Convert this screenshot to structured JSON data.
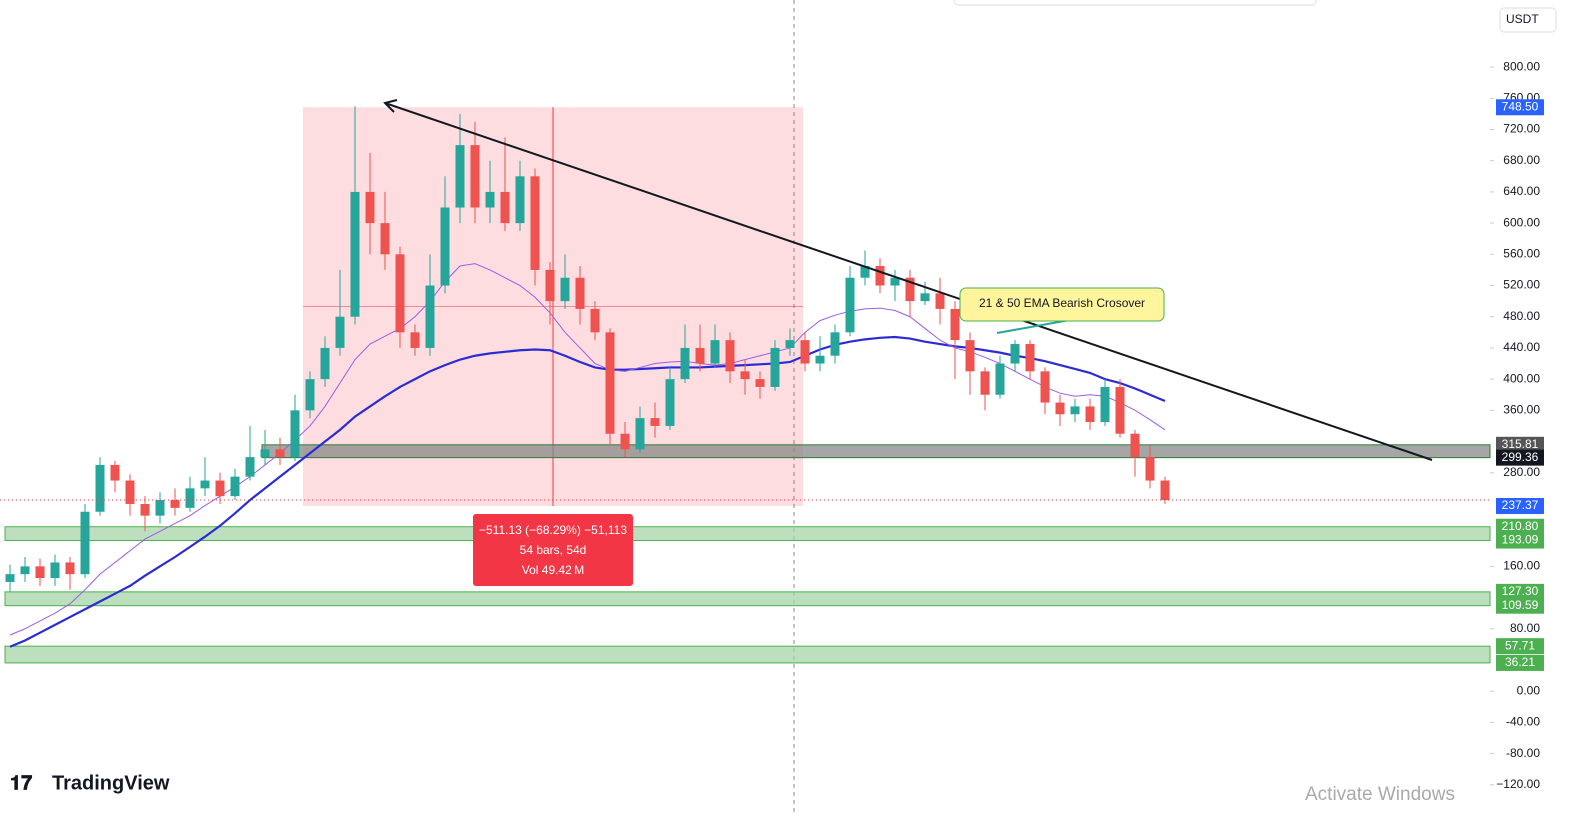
{
  "toolbar": {
    "currency": "USDT"
  },
  "chart_data": {
    "type": "candlestick",
    "ylim": [
      -160,
      886
    ],
    "yticks": [
      {
        "value": 800,
        "label": "800.00"
      },
      {
        "value": 760,
        "label": "760.00"
      },
      {
        "value": 720,
        "label": "720.00"
      },
      {
        "value": 680,
        "label": "680.00"
      },
      {
        "value": 640,
        "label": "640.00"
      },
      {
        "value": 600,
        "label": "600.00"
      },
      {
        "value": 560,
        "label": "560.00"
      },
      {
        "value": 520,
        "label": "520.00"
      },
      {
        "value": 480,
        "label": "480.00"
      },
      {
        "value": 440,
        "label": "440.00"
      },
      {
        "value": 400,
        "label": "400.00"
      },
      {
        "value": 360,
        "label": "360.00"
      },
      {
        "value": 280,
        "label": "280.00"
      },
      {
        "value": 160,
        "label": "160.00"
      },
      {
        "value": 80,
        "label": "80.00"
      },
      {
        "value": 0,
        "label": "0.00"
      },
      {
        "value": -40,
        "label": "-40.00"
      },
      {
        "value": -80,
        "label": "-80.00"
      },
      {
        "value": -120,
        "label": "−120.00"
      }
    ],
    "up_color": "#26a69a",
    "down_color": "#ef5350",
    "candles": [
      [
        140,
        162,
        128,
        150
      ],
      [
        150,
        172,
        140,
        160
      ],
      [
        160,
        170,
        135,
        145
      ],
      [
        145,
        175,
        135,
        165
      ],
      [
        165,
        172,
        130,
        150
      ],
      [
        150,
        240,
        145,
        230
      ],
      [
        230,
        300,
        225,
        290
      ],
      [
        290,
        295,
        255,
        270
      ],
      [
        270,
        278,
        225,
        240
      ],
      [
        240,
        250,
        205,
        225
      ],
      [
        225,
        255,
        215,
        245
      ],
      [
        245,
        260,
        225,
        235
      ],
      [
        235,
        275,
        230,
        260
      ],
      [
        260,
        300,
        250,
        270
      ],
      [
        270,
        280,
        240,
        250
      ],
      [
        250,
        285,
        245,
        275
      ],
      [
        275,
        340,
        270,
        300
      ],
      [
        300,
        335,
        290,
        310
      ],
      [
        310,
        325,
        290,
        300
      ],
      [
        300,
        380,
        295,
        360
      ],
      [
        360,
        410,
        350,
        400
      ],
      [
        400,
        455,
        390,
        440
      ],
      [
        440,
        540,
        430,
        480
      ],
      [
        480,
        750,
        470,
        640
      ],
      [
        640,
        690,
        560,
        600
      ],
      [
        600,
        640,
        540,
        560
      ],
      [
        560,
        570,
        440,
        460
      ],
      [
        460,
        470,
        430,
        440
      ],
      [
        440,
        560,
        430,
        520
      ],
      [
        520,
        660,
        510,
        620
      ],
      [
        620,
        740,
        600,
        700
      ],
      [
        700,
        730,
        600,
        620
      ],
      [
        620,
        680,
        600,
        640
      ],
      [
        640,
        710,
        590,
        600
      ],
      [
        600,
        680,
        590,
        660
      ],
      [
        660,
        670,
        520,
        540
      ],
      [
        540,
        550,
        470,
        500
      ],
      [
        500,
        560,
        490,
        530
      ],
      [
        530,
        545,
        470,
        490
      ],
      [
        490,
        500,
        450,
        460
      ],
      [
        460,
        465,
        315,
        330
      ],
      [
        330,
        345,
        300,
        310
      ],
      [
        310,
        365,
        305,
        350
      ],
      [
        350,
        370,
        325,
        340
      ],
      [
        340,
        415,
        335,
        400
      ],
      [
        400,
        470,
        395,
        440
      ],
      [
        440,
        470,
        410,
        420
      ],
      [
        420,
        470,
        415,
        450
      ],
      [
        450,
        460,
        395,
        410
      ],
      [
        410,
        425,
        380,
        400
      ],
      [
        400,
        410,
        375,
        390
      ],
      [
        390,
        450,
        385,
        440
      ],
      [
        440,
        465,
        430,
        450
      ],
      [
        450,
        460,
        410,
        420
      ],
      [
        420,
        455,
        410,
        430
      ],
      [
        430,
        470,
        420,
        460
      ],
      [
        460,
        545,
        455,
        530
      ],
      [
        530,
        565,
        520,
        545
      ],
      [
        545,
        555,
        510,
        520
      ],
      [
        520,
        540,
        500,
        530
      ],
      [
        530,
        540,
        480,
        500
      ],
      [
        500,
        525,
        495,
        510
      ],
      [
        510,
        530,
        470,
        490
      ],
      [
        490,
        500,
        400,
        450
      ],
      [
        450,
        460,
        380,
        410
      ],
      [
        410,
        415,
        360,
        380
      ],
      [
        380,
        430,
        375,
        420
      ],
      [
        420,
        450,
        410,
        445
      ],
      [
        445,
        450,
        400,
        410
      ],
      [
        410,
        415,
        355,
        370
      ],
      [
        370,
        380,
        340,
        355
      ],
      [
        355,
        375,
        345,
        365
      ],
      [
        365,
        375,
        335,
        345
      ],
      [
        345,
        400,
        340,
        390
      ],
      [
        390,
        400,
        325,
        330
      ],
      [
        330,
        335,
        275,
        300
      ],
      [
        300,
        315,
        260,
        270
      ],
      [
        270,
        275,
        240,
        245
      ]
    ],
    "lines": [
      {
        "color": "#2b2bd6",
        "values": [
          57,
          65,
          75,
          85,
          95,
          105,
          115,
          125,
          135,
          148,
          160,
          172,
          185,
          198,
          212,
          228,
          245,
          260,
          275,
          290,
          305,
          320,
          335,
          352,
          365,
          378,
          390,
          400,
          410,
          418,
          425,
          430,
          433,
          435,
          437,
          438,
          437,
          430,
          422,
          415,
          412,
          412,
          413,
          414,
          415,
          415,
          415,
          416,
          417,
          418,
          419,
          420,
          422,
          430,
          438,
          444,
          448,
          451,
          453,
          454,
          452,
          448,
          445,
          442,
          440,
          437,
          434,
          430,
          427,
          423,
          418,
          413,
          408,
          400,
          395,
          388,
          380,
          372
        ]
      },
      {
        "color": "#9c5ce6",
        "values": [
          72,
          80,
          90,
          100,
          112,
          130,
          150,
          165,
          180,
          195,
          205,
          215,
          225,
          238,
          250,
          262,
          275,
          290,
          305,
          322,
          340,
          365,
          395,
          425,
          445,
          455,
          465,
          480,
          500,
          525,
          545,
          548,
          540,
          530,
          520,
          505,
          485,
          460,
          440,
          420,
          412,
          410,
          415,
          420,
          422,
          423,
          420,
          418,
          420,
          425,
          430,
          435,
          440,
          460,
          475,
          482,
          487,
          490,
          491,
          488,
          480,
          465,
          450,
          440,
          435,
          428,
          420,
          410,
          400,
          390,
          382,
          378,
          380,
          378,
          370,
          360,
          348,
          335
        ]
      }
    ],
    "zones": [
      {
        "low": 299.36,
        "high": 315.81,
        "color": "#888888",
        "low_label": "299.36",
        "high_label": "315.81"
      },
      {
        "low": 193.09,
        "high": 210.8,
        "color": "#a5d6a7",
        "low_label": "193.09",
        "high_label": "210.80"
      },
      {
        "low": 109.59,
        "high": 127.3,
        "color": "#a5d6a7",
        "low_label": "109.59",
        "high_label": "127.30"
      },
      {
        "low": 36.21,
        "high": 57.71,
        "color": "#a5d6a7",
        "low_label": "36.21",
        "high_label": "57.71"
      }
    ],
    "measure": {
      "top": 748.5,
      "bottom": 237.37,
      "top_label": "748.50",
      "bottom_label": "237.37",
      "lines": [
        "−511.13 (−68.29%) −51,113",
        "54 bars, 54d",
        "Vol 49.42 M"
      ]
    },
    "annotation": "21 & 50 EMA Bearish Crosover"
  },
  "branding": "TradingView",
  "watermark": "Activate Windows"
}
